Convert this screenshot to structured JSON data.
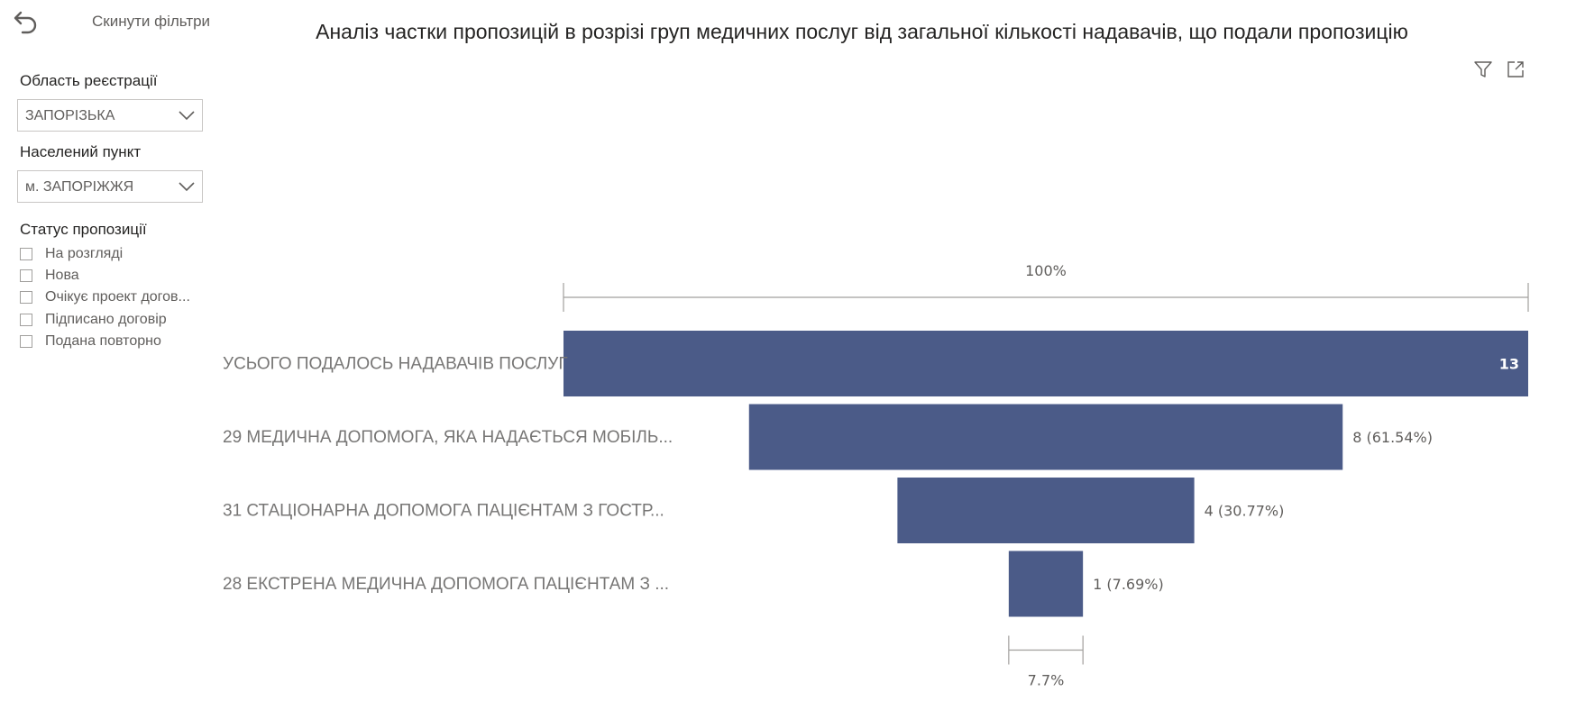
{
  "filters": {
    "reset_label": "Скинути фільтри",
    "region": {
      "title": "Область реєстрації",
      "value": "ЗАПОРІЗЬКА"
    },
    "settlement": {
      "title": "Населений пункт",
      "value": "м. ЗАПОРІЖЖЯ"
    },
    "status": {
      "title": "Статус пропозиції",
      "options": [
        "На розгляді",
        "Нова",
        "Очікує проект догов...",
        "Підписано договір",
        "Подана повторно"
      ]
    }
  },
  "chart_data": {
    "type": "funnel",
    "title": "Аналіз частки пропозицій в розрізі груп медичних послуг від загальної кількості надавачів, що подали пропозицію",
    "categories": [
      "УСЬОГО ПОДАЛОСЬ НАДАВАЧІВ ПОСЛУГ",
      "29 МЕДИЧНА ДОПОМОГА, ЯКА НАДАЄТЬСЯ МОБІЛЬ...",
      "31 СТАЦІОНАРНА ДОПОМОГА ПАЦІЄНТАМ З ГОСТР...",
      "28 ЕКСТРЕНА МЕДИЧНА ДОПОМОГА ПАЦІЄНТАМ З ..."
    ],
    "values": [
      13,
      8,
      4,
      1
    ],
    "data_labels": [
      "13",
      "8 (61.54%)",
      "4 (30.77%)",
      "1 (7.69%)"
    ],
    "top_percent_label": "100%",
    "bottom_percent_label": "7.7%",
    "bar_color": "#4b5b88"
  }
}
